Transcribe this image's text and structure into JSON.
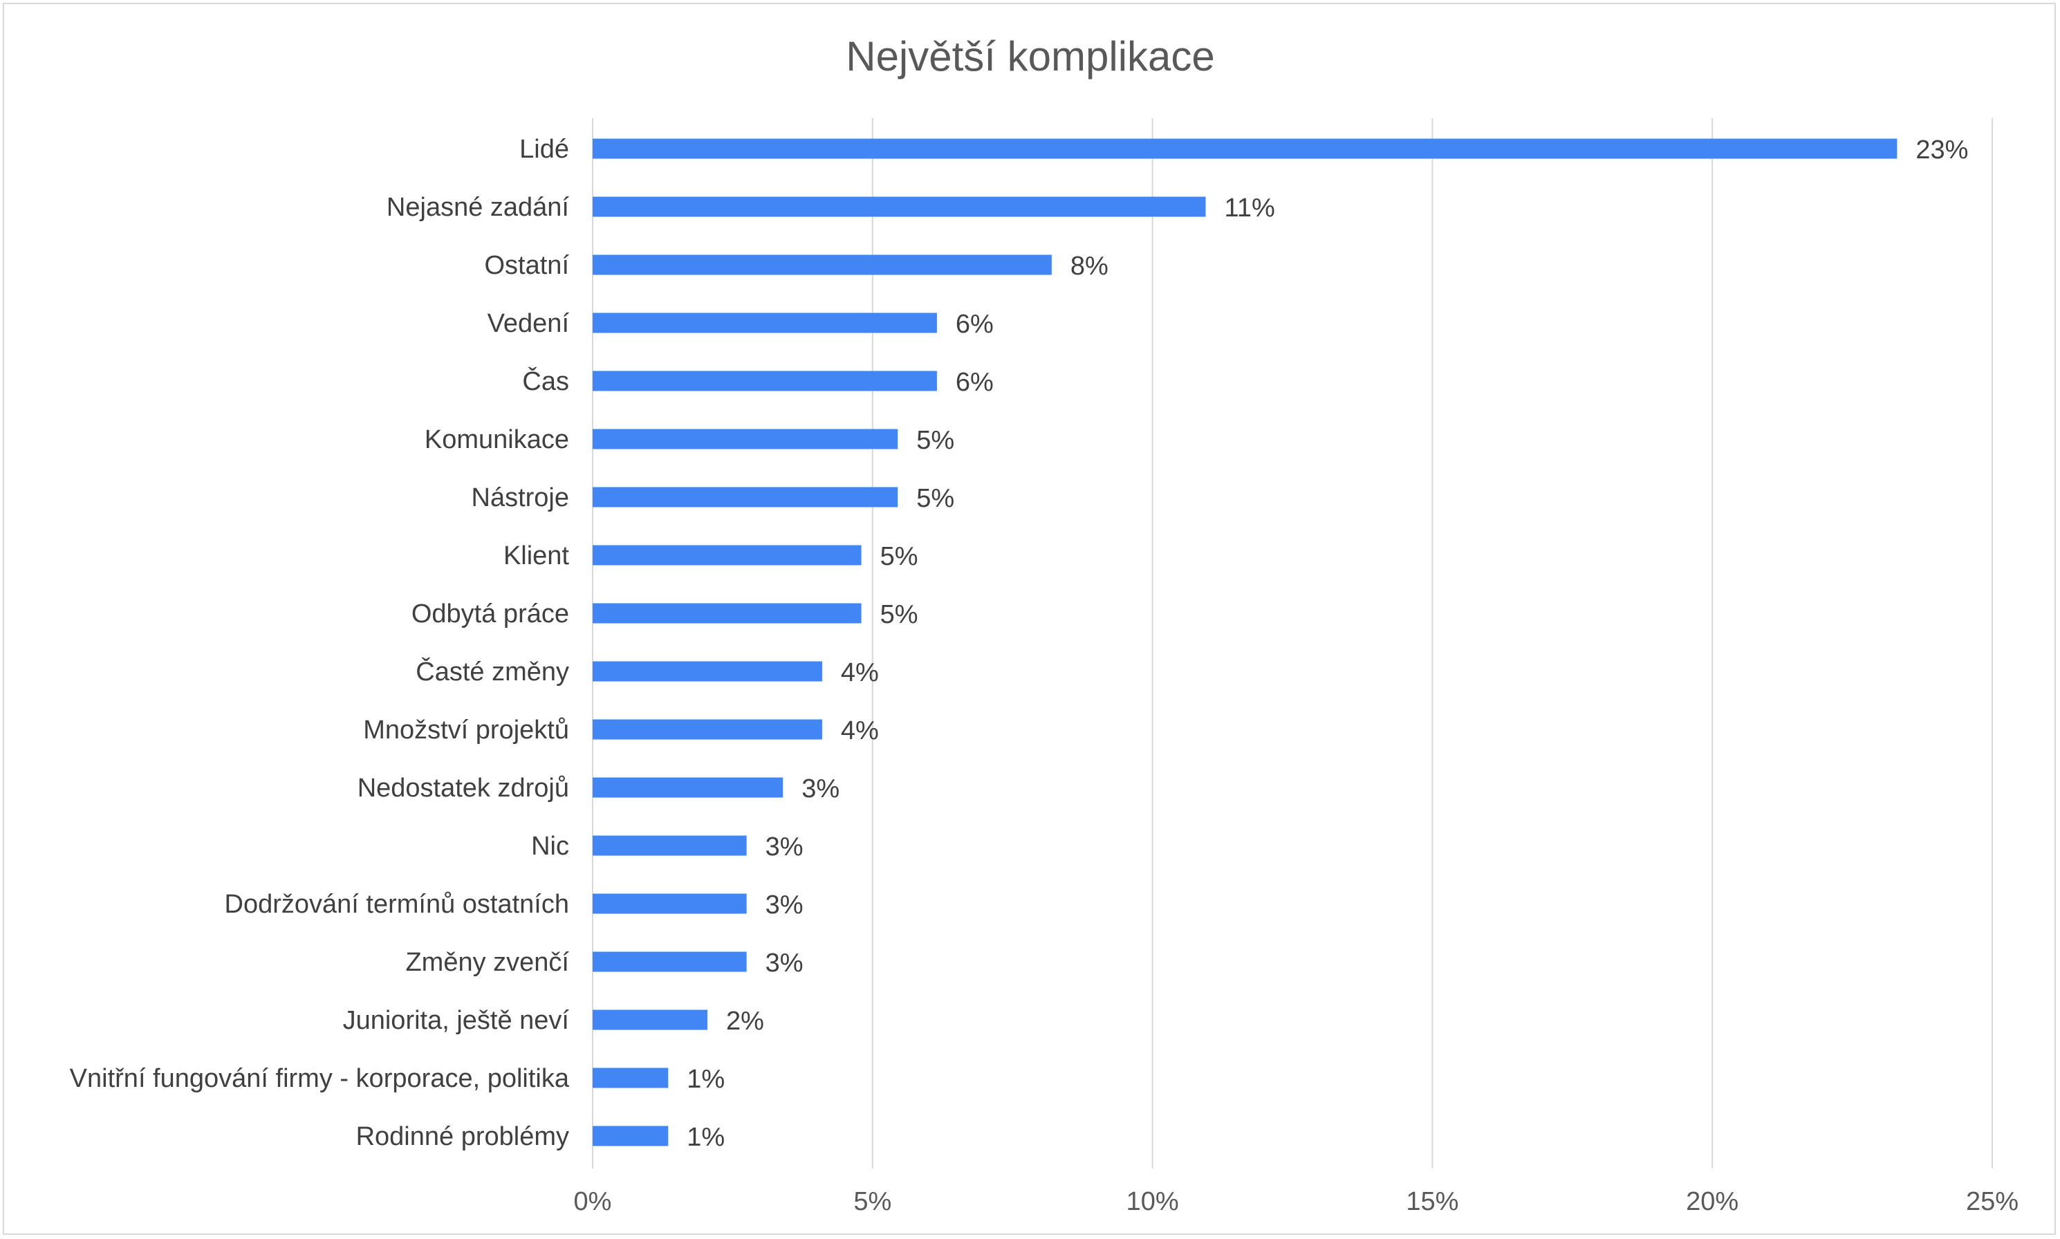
{
  "chart_data": {
    "type": "bar",
    "orientation": "horizontal",
    "title": "Největší komplikace",
    "xlabel": "",
    "ylabel": "",
    "xlim": [
      0,
      25
    ],
    "x_ticks": [
      "0%",
      "5%",
      "10%",
      "15%",
      "20%",
      "25%"
    ],
    "x_tick_values": [
      0,
      5,
      10,
      15,
      20,
      25
    ],
    "grid": true,
    "legend": "none",
    "bar_color": "#4285f4",
    "categories": [
      "Lidé",
      "Nejasné zadání",
      "Ostatní",
      "Vedení",
      "Čas",
      "Komunikace",
      "Nástroje",
      "Klient",
      "Odbytá práce",
      "Časté změny",
      "Množství projektů",
      "Nedostatek zdrojů",
      "Nic",
      "Dodržování termínů ostatních",
      "Změny zvenčí",
      "Juniorita, ještě neví",
      "Vnitřní fungování firmy - korporace, politika",
      "Rodinné problémy"
    ],
    "values": [
      23.3,
      10.95,
      8.2,
      6.15,
      6.15,
      5.45,
      5.45,
      4.8,
      4.8,
      4.1,
      4.1,
      3.4,
      2.75,
      2.75,
      2.75,
      2.05,
      1.35,
      1.35
    ],
    "data_labels": [
      "23%",
      "11%",
      "8%",
      "6%",
      "6%",
      "5%",
      "5%",
      "5%",
      "5%",
      "4%",
      "4%",
      "3%",
      "3%",
      "3%",
      "3%",
      "2%",
      "1%",
      "1%"
    ]
  }
}
